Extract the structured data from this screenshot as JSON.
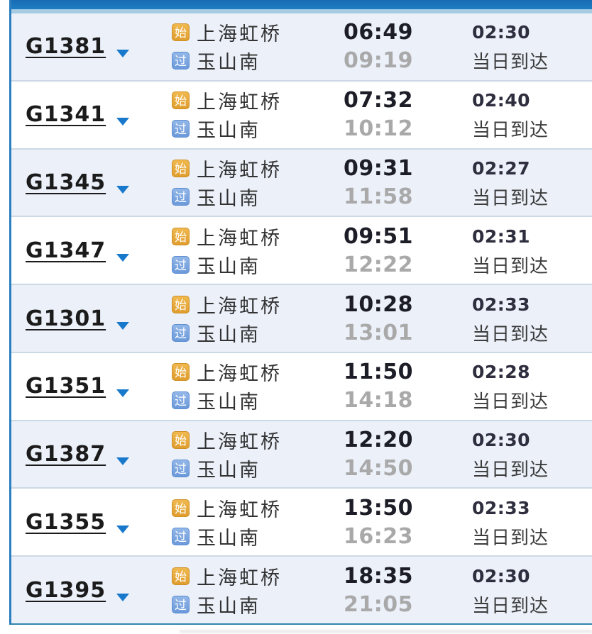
{
  "colors": {
    "header_bar": "#1f7dc2",
    "header_strip": "#a6cbe2",
    "row_bg": "#ffffff",
    "row_alt_bg": "#ebf0f9",
    "divider": "#ccd9e5",
    "left_border": "#2b7fc0",
    "bottom_border": "#2f86ac",
    "train_link": "#1b1b1b",
    "arrow": "#1879cc",
    "start_icon_bg": "#e09d2e",
    "pass_icon_bg": "#6b99da",
    "station_text": "#333333",
    "departure_time": "#1d1d28",
    "arrival_time": "#a9a9a9",
    "duration": "#2e2e3e",
    "note": "#3c3c3c"
  },
  "legend": {
    "start_icon": "始",
    "pass_icon": "过"
  },
  "rows": [
    {
      "train_no": "G1381",
      "from": "上海虹桥",
      "to": "玉山南",
      "depart": "06:49",
      "arrive": "09:19",
      "duration": "02:30",
      "arrival_day": "当日到达"
    },
    {
      "train_no": "G1341",
      "from": "上海虹桥",
      "to": "玉山南",
      "depart": "07:32",
      "arrive": "10:12",
      "duration": "02:40",
      "arrival_day": "当日到达"
    },
    {
      "train_no": "G1345",
      "from": "上海虹桥",
      "to": "玉山南",
      "depart": "09:31",
      "arrive": "11:58",
      "duration": "02:27",
      "arrival_day": "当日到达"
    },
    {
      "train_no": "G1347",
      "from": "上海虹桥",
      "to": "玉山南",
      "depart": "09:51",
      "arrive": "12:22",
      "duration": "02:31",
      "arrival_day": "当日到达"
    },
    {
      "train_no": "G1301",
      "from": "上海虹桥",
      "to": "玉山南",
      "depart": "10:28",
      "arrive": "13:01",
      "duration": "02:33",
      "arrival_day": "当日到达"
    },
    {
      "train_no": "G1351",
      "from": "上海虹桥",
      "to": "玉山南",
      "depart": "11:50",
      "arrive": "14:18",
      "duration": "02:28",
      "arrival_day": "当日到达"
    },
    {
      "train_no": "G1387",
      "from": "上海虹桥",
      "to": "玉山南",
      "depart": "12:20",
      "arrive": "14:50",
      "duration": "02:30",
      "arrival_day": "当日到达"
    },
    {
      "train_no": "G1355",
      "from": "上海虹桥",
      "to": "玉山南",
      "depart": "13:50",
      "arrive": "16:23",
      "duration": "02:33",
      "arrival_day": "当日到达"
    },
    {
      "train_no": "G1395",
      "from": "上海虹桥",
      "to": "玉山南",
      "depart": "18:35",
      "arrive": "21:05",
      "duration": "02:30",
      "arrival_day": "当日到达"
    }
  ]
}
